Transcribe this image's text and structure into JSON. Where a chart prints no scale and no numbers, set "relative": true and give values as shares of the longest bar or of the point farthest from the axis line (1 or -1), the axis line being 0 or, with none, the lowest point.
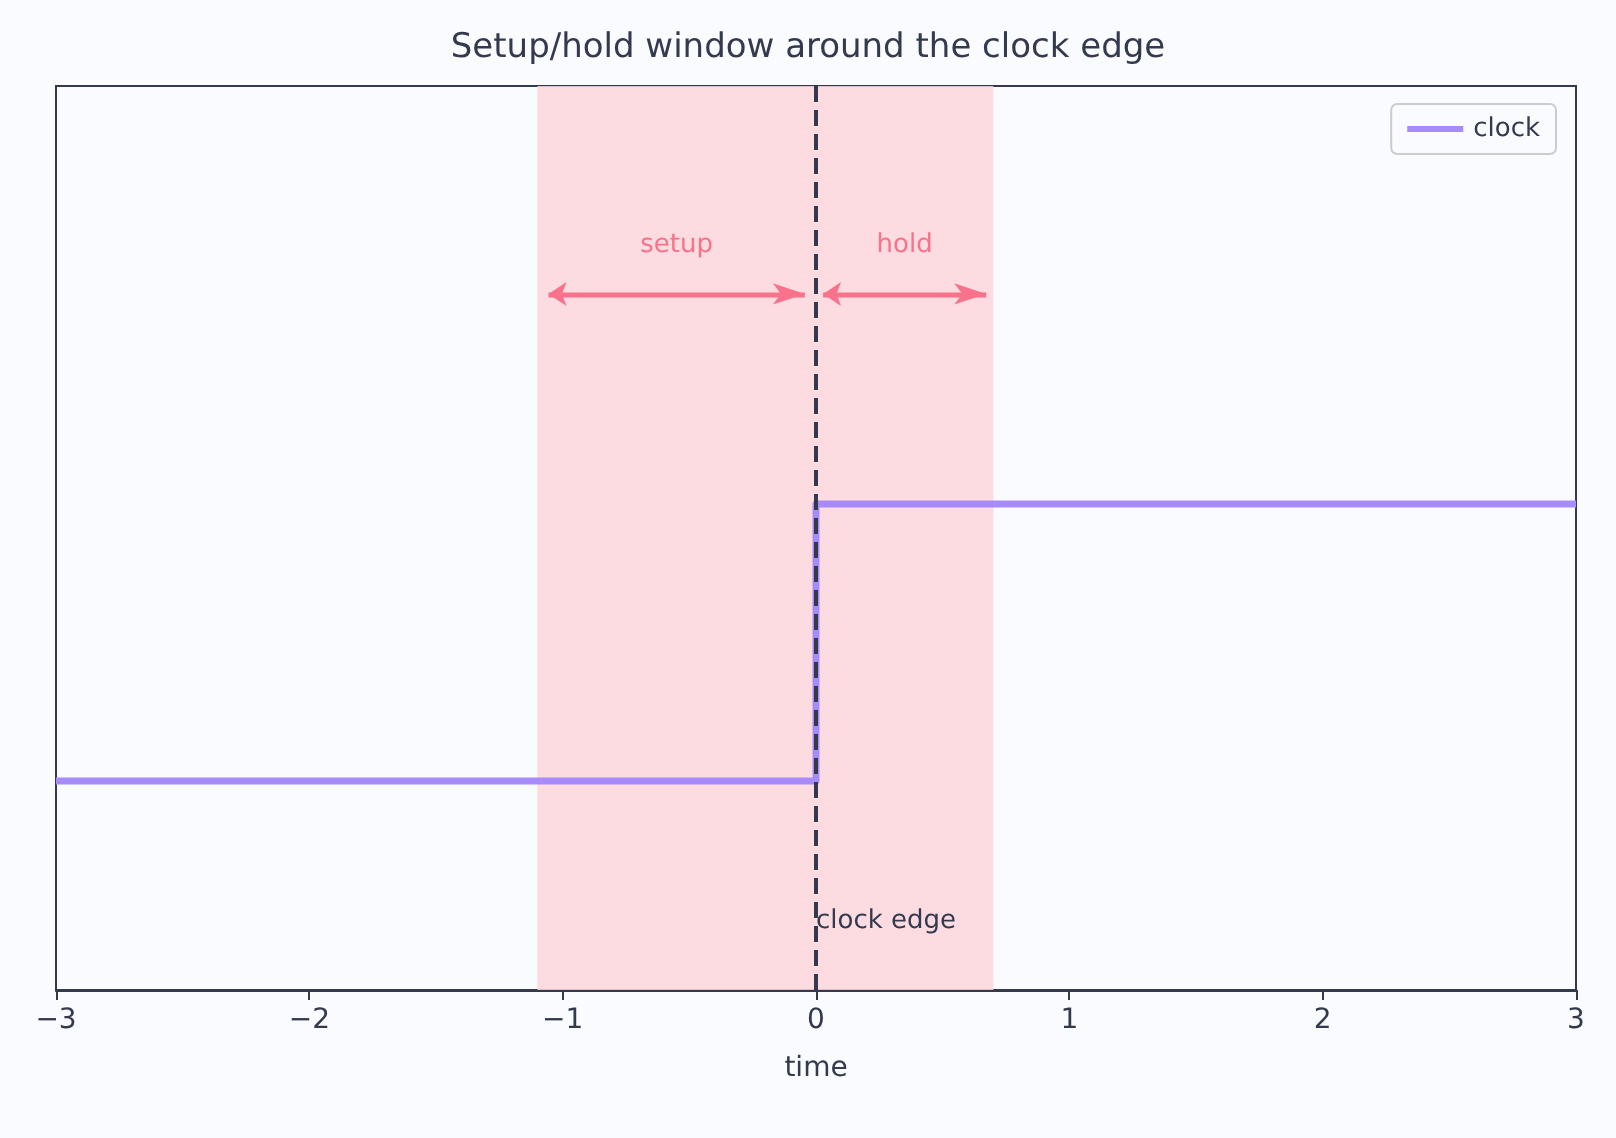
{
  "chart_data": {
    "type": "step",
    "title": "Setup/hold window around the clock edge",
    "xlabel": "time",
    "relative": true,
    "xlim": [
      -3,
      3
    ],
    "xticks": [
      -3,
      -2,
      -1,
      0,
      1,
      2,
      3
    ],
    "series": [
      {
        "name": "clock",
        "color": "#a78bfa",
        "x": [
          -3,
          0,
          3
        ],
        "values": [
          0.43,
          1,
          1
        ]
      }
    ],
    "bands": [
      {
        "axis": "x",
        "from": -1.1,
        "to": 0,
        "label": "setup",
        "color": "#fbd5dc"
      },
      {
        "axis": "x",
        "from": 0,
        "to": 0.7,
        "label": "hold",
        "color": "#fbd5dc"
      }
    ],
    "ref_lines": [
      {
        "axis": "x",
        "value": 0,
        "label": "clock edge",
        "color": "#333a4d",
        "line_style": "dashed"
      }
    ],
    "grid": false,
    "legend": "top right",
    "marker": "none",
    "line_style": "solid"
  }
}
